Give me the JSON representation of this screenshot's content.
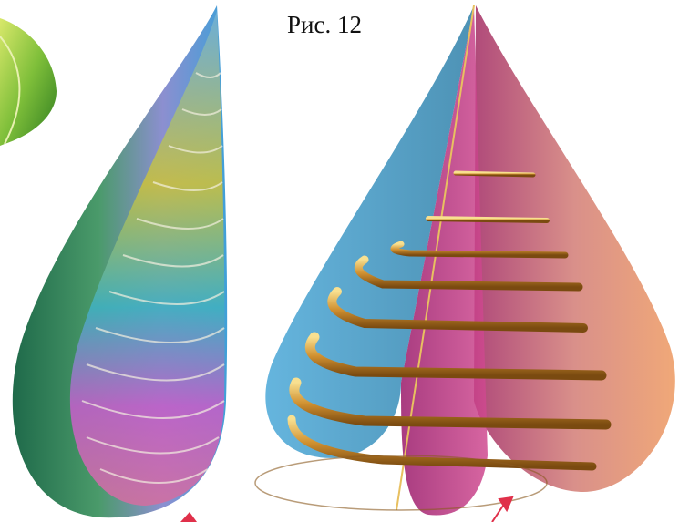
{
  "caption": "Рис. 12"
}
